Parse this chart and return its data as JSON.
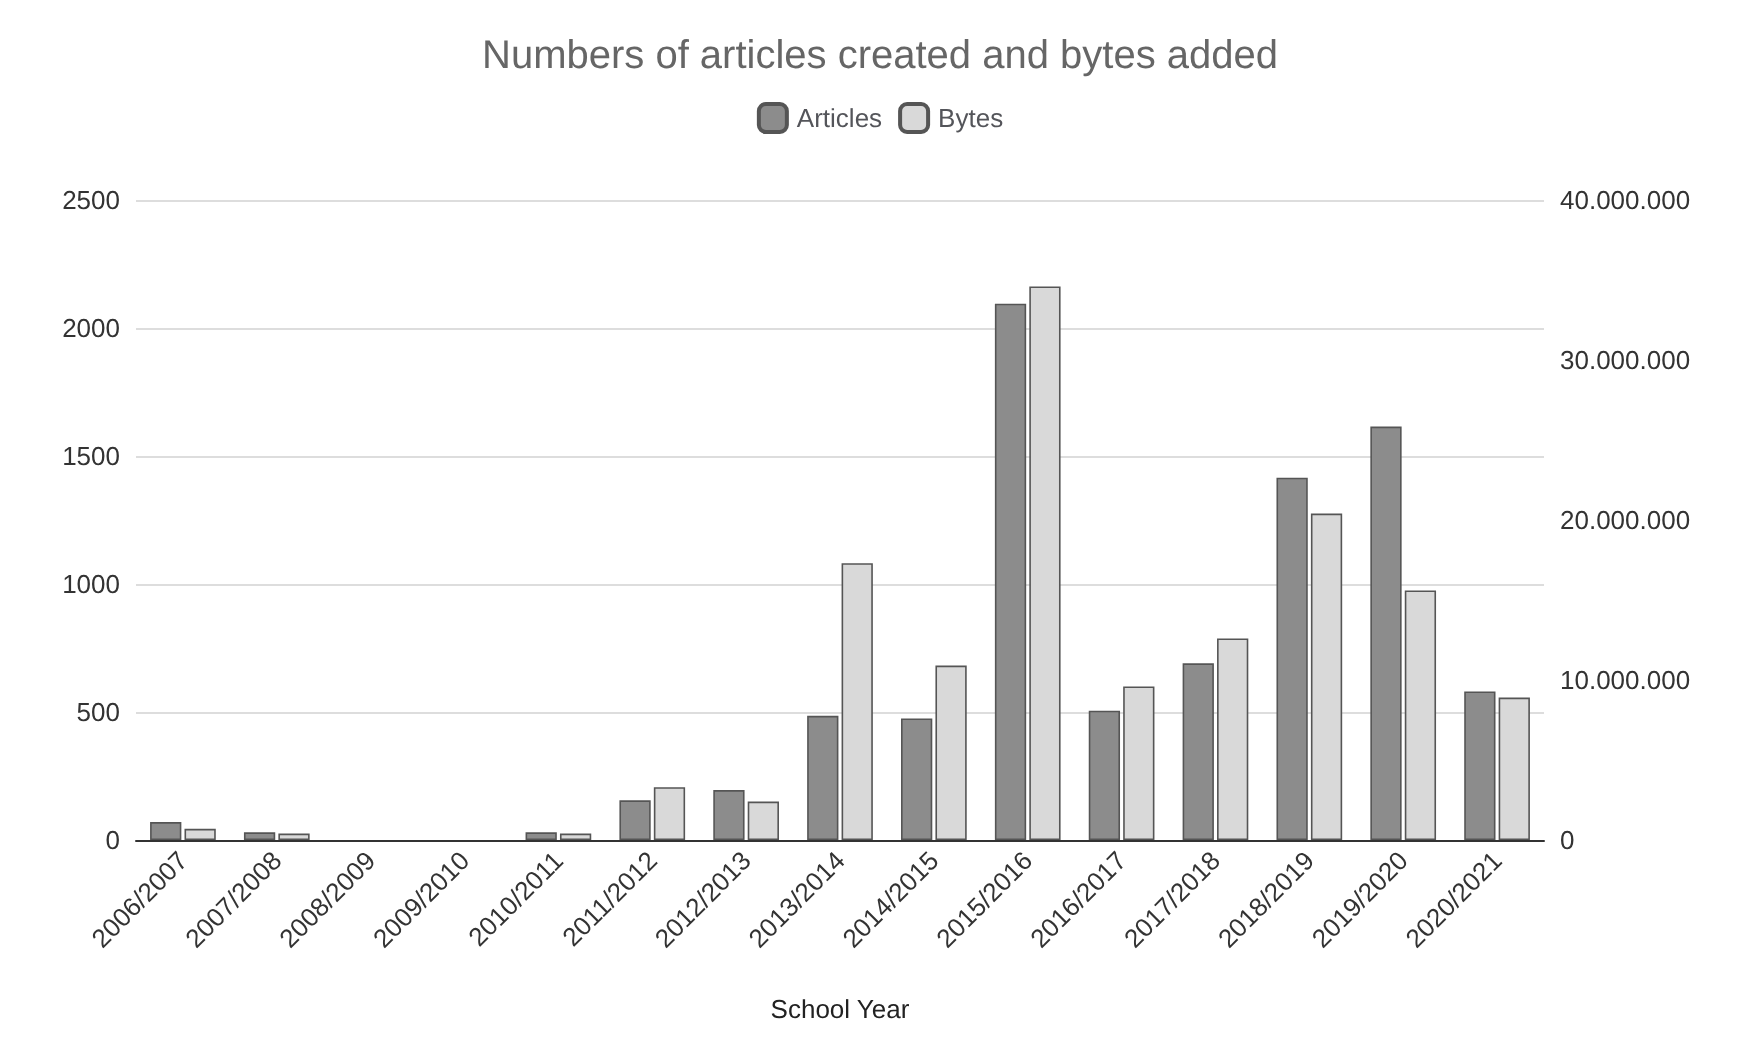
{
  "chart_data": {
    "type": "bar",
    "title": "Numbers of articles created and bytes added",
    "xlabel": "School Year",
    "categories": [
      "2006/2007",
      "2007/2008",
      "2008/2009",
      "2009/2010",
      "2010/2011",
      "2011/2012",
      "2012/2013",
      "2013/2014",
      "2014/2015",
      "2015/2016",
      "2016/2017",
      "2017/2018",
      "2018/2019",
      "2019/2020",
      "2020/2021"
    ],
    "series": [
      {
        "name": "Articles",
        "color": "#8c8c8c",
        "values": [
          70,
          30,
          0,
          0,
          30,
          155,
          195,
          485,
          475,
          2095,
          505,
          690,
          1415,
          1615,
          580
        ]
      },
      {
        "name": "Bytes",
        "color": "#d9d9d9",
        "axis": "y2",
        "values": [
          700000,
          400000,
          0,
          0,
          400000,
          3300000,
          2400000,
          17300000,
          10900000,
          34600000,
          9600000,
          12600000,
          20400000,
          15600000,
          8900000
        ]
      }
    ],
    "ylim": [
      0,
      2500
    ],
    "yticks": [
      0,
      500,
      1000,
      1500,
      2000,
      2500
    ],
    "y2lim": [
      0,
      40000000
    ],
    "y2ticks": [
      0,
      {
        "value": 10000000,
        "label": "10.000.000"
      },
      {
        "value": 20000000,
        "label": "20.000.000"
      },
      {
        "value": 30000000,
        "label": "30.000.000"
      },
      {
        "value": 40000000,
        "label": "40.000.000"
      }
    ],
    "grid": "y",
    "legend": "top"
  }
}
